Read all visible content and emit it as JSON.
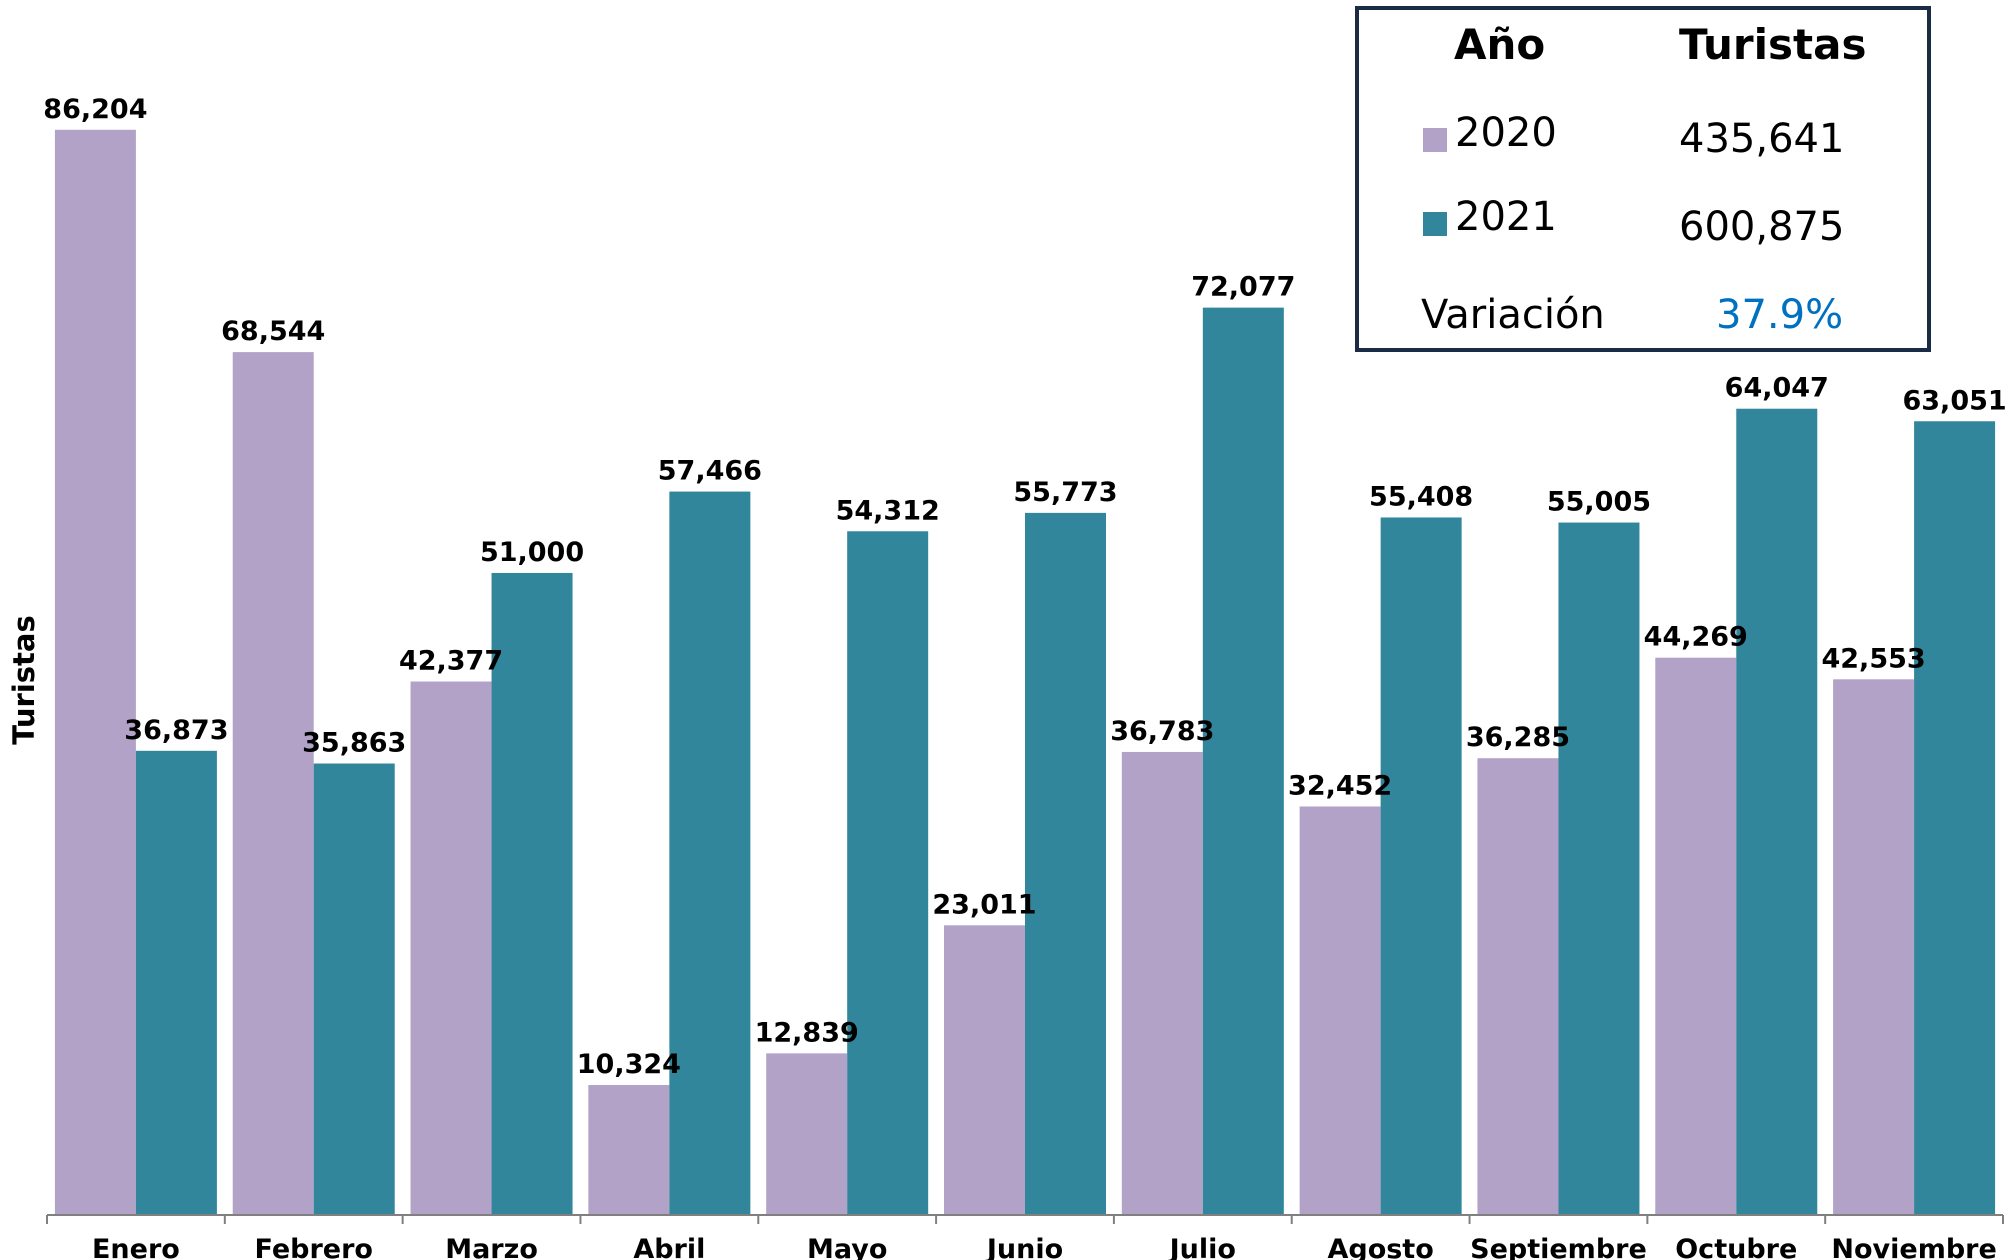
{
  "chart_data": {
    "type": "bar",
    "ylabel": "Turistas",
    "ylim": [
      0,
      90000
    ],
    "categories": [
      "Enero",
      "Febrero",
      "Marzo",
      "Abril",
      "Mayo",
      "Junio",
      "Julio",
      "Agosto",
      "Septiembre",
      "Octubre",
      "Noviembre"
    ],
    "series": [
      {
        "name": "2020",
        "color": "#b3a2c8",
        "values": [
          86204,
          68544,
          42377,
          10324,
          12839,
          23011,
          36783,
          32452,
          36285,
          44269,
          42553
        ],
        "labels": [
          "86,204",
          "68,544",
          "42,377",
          "10,324",
          "12,839",
          "23,011",
          "36,783",
          "32,452",
          "36,285",
          "44,269",
          "42,553"
        ]
      },
      {
        "name": "2021",
        "color": "#31869b",
        "values": [
          36873,
          35863,
          51000,
          57466,
          54312,
          55773,
          72077,
          55408,
          55005,
          64047,
          63051
        ],
        "labels": [
          "36,873",
          "35,863",
          "51,000",
          "57,466",
          "54,312",
          "55,773",
          "72,077",
          "55,408",
          "55,005",
          "64,047",
          "63,051"
        ]
      }
    ],
    "legend_position": "top-right",
    "grid": false
  },
  "summary": {
    "header_year": "Año",
    "header_tourists": "Turistas",
    "rows": [
      {
        "year": "2020",
        "total": "435,641",
        "color": "#b3a2c8"
      },
      {
        "year": "2021",
        "total": "600,875",
        "color": "#31869b"
      }
    ],
    "variation_label": "Variación",
    "variation_value": "37.9%",
    "variation_color": "#0070c0"
  }
}
